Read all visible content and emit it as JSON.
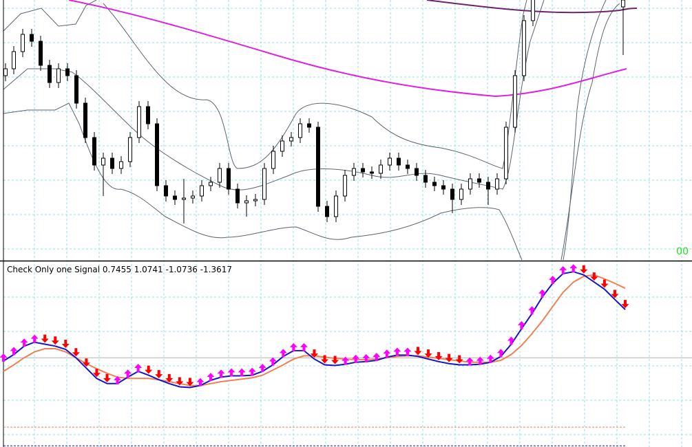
{
  "chart_data": {
    "type": "line",
    "title": "Check Only one Signal",
    "ylim": [
      -1.38,
      1.48
    ],
    "series": [
      {
        "color": "#1414c8",
        "values": [
          -0.05,
          0.05,
          0.18,
          0.24,
          0.21,
          0.18,
          0.13,
          0,
          -0.16,
          -0.32,
          -0.4,
          -0.4,
          -0.3,
          -0.21,
          -0.27,
          -0.34,
          -0.4,
          -0.45,
          -0.46,
          -0.43,
          -0.35,
          -0.3,
          -0.28,
          -0.28,
          -0.27,
          -0.21,
          -0.11,
          0.02,
          0.11,
          0.11,
          -0.02,
          -0.11,
          -0.12,
          -0.1,
          -0.07,
          -0.06,
          -0.04,
          0.01,
          0.04,
          0.04,
          0.02,
          -0.02,
          -0.06,
          -0.09,
          -0.11,
          -0.11,
          -0.1,
          -0.07,
          0.02,
          0.21,
          0.45,
          0.68,
          0.94,
          1.15,
          1.3,
          1.33,
          1.28,
          1.17,
          1.06,
          0.9,
          0.7455
        ]
      },
      {
        "color": "#f08050",
        "values": [
          -0.21,
          -0.11,
          0,
          0.09,
          0.14,
          0.14,
          0.09,
          0,
          -0.09,
          -0.17,
          -0.24,
          -0.3,
          -0.32,
          -0.32,
          -0.32,
          -0.34,
          -0.37,
          -0.4,
          -0.43,
          -0.43,
          -0.4,
          -0.37,
          -0.35,
          -0.33,
          -0.31,
          -0.27,
          -0.19,
          -0.11,
          -0.02,
          0.03,
          0.03,
          0.01,
          -0.01,
          -0.02,
          -0.03,
          -0.03,
          -0.02,
          0,
          0.02,
          0.03,
          0.03,
          0.01,
          -0.01,
          -0.03,
          -0.05,
          -0.07,
          -0.07,
          -0.07,
          -0.04,
          0.05,
          0.19,
          0.37,
          0.57,
          0.79,
          1.01,
          1.17,
          1.26,
          1.28,
          1.22,
          1.15,
          1.0741
        ]
      }
    ],
    "lines": [
      {
        "color": "#f08050",
        "value": -1.0736
      },
      {
        "color": "#1414c8",
        "value": -1.3617
      }
    ],
    "up_color": "#ff00ff",
    "down_color": "#ff0000"
  },
  "price_pane": {
    "label": "00"
  }
}
